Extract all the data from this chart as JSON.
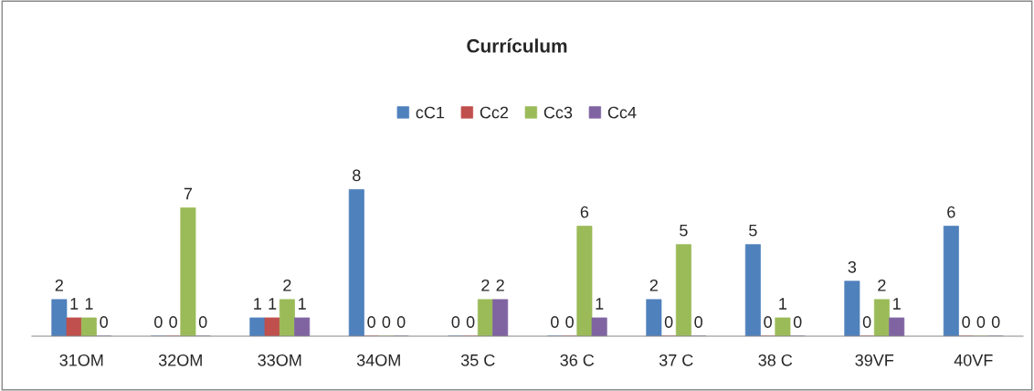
{
  "chart_data": {
    "type": "bar",
    "title": "Currículum",
    "categories": [
      "31OM",
      "32OM",
      "33OM",
      "34OM",
      "35 C",
      "36 C",
      "37 C",
      "38 C",
      "39VF",
      "40VF"
    ],
    "series": [
      {
        "name": "cC1",
        "color": "#4f81bd",
        "values": [
          2,
          0,
          1,
          8,
          0,
          0,
          2,
          5,
          3,
          6
        ]
      },
      {
        "name": "Cc2",
        "color": "#c0504d",
        "values": [
          1,
          0,
          1,
          0,
          0,
          0,
          0,
          0,
          0,
          0
        ]
      },
      {
        "name": "Cc3",
        "color": "#9bbb59",
        "values": [
          1,
          7,
          2,
          0,
          2,
          6,
          5,
          1,
          2,
          0
        ]
      },
      {
        "name": "Cc4",
        "color": "#8064a2",
        "values": [
          0,
          0,
          1,
          0,
          2,
          1,
          0,
          0,
          1,
          0
        ]
      }
    ],
    "data_labels": true,
    "legend": "top",
    "grid": false,
    "tick_labels": "x"
  }
}
